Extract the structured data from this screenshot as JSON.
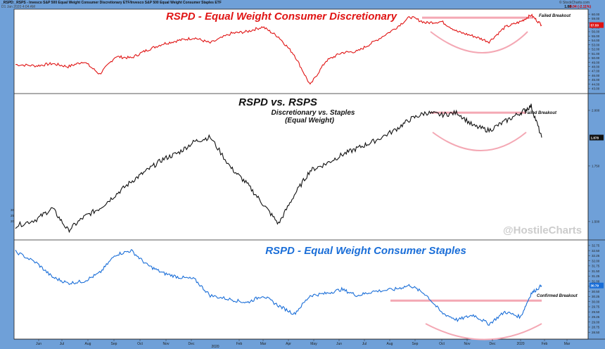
{
  "header": {
    "title": "_RSPD:_RSPS - Invesco S&P 500 Equal Weight Consumer Discretionary ETF/Invesco S&P 500 Equal Weight Consumer Staples ETF",
    "subtitle": "D1 Jan 2020 4:04 AM",
    "brand": "© StockCharts.com",
    "last": "1.88",
    "change": "-0.04 (-2.11%)"
  },
  "colors": {
    "red": "#e01414",
    "black": "#111111",
    "blue": "#1a6ed8",
    "pink": "#f4a8b4",
    "bg": "#6fa0d8"
  },
  "watermark": "@HostileCharts",
  "xaxis": {
    "months": [
      "Jun",
      "Jul",
      "Aug",
      "Sep",
      "Oct",
      "Nov",
      "Dec",
      "Feb",
      "Mar",
      "Apr",
      "May",
      "Jun",
      "Jul",
      "Aug",
      "Sep",
      "Oct",
      "Nov",
      "Dec",
      "2020",
      "Feb",
      "Mar"
    ],
    "year_label": "2020"
  },
  "chart_data": [
    {
      "type": "line",
      "title": "RSPD - Equal Weight Consumer Discretionary",
      "annotation": "Failed Breakout",
      "last_label": "57.50",
      "yticks": [
        "60.00",
        "59.00",
        "58.00",
        "57.00",
        "56.00",
        "55.00",
        "54.00",
        "53.00",
        "52.00",
        "51.00",
        "50.00",
        "49.00",
        "48.00",
        "47.00",
        "46.00",
        "45.00",
        "44.00",
        "43.00"
      ],
      "ylim": [
        42.5,
        60.5
      ],
      "x": [
        0,
        0.04,
        0.07,
        0.1,
        0.13,
        0.16,
        0.19,
        0.22,
        0.25,
        0.28,
        0.31,
        0.34,
        0.37,
        0.41,
        0.44,
        0.47,
        0.5,
        0.53,
        0.56,
        0.59,
        0.62,
        0.65,
        0.68,
        0.72,
        0.75,
        0.78,
        0.81,
        0.84,
        0.87,
        0.9,
        0.93,
        0.96,
        0.98,
        1.0
      ],
      "y": [
        48.5,
        48.2,
        48.7,
        48.0,
        49.2,
        46.3,
        50.3,
        50.0,
        51.8,
        53.2,
        54.0,
        54.6,
        53.4,
        55.6,
        56.0,
        57.1,
        54.8,
        50.7,
        43.8,
        49.3,
        51.2,
        51.5,
        53.6,
        56.6,
        59.4,
        58.0,
        58.3,
        56.0,
        55.0,
        53.7,
        57.0,
        58.3,
        59.8,
        57.5
      ]
    },
    {
      "type": "line",
      "title": "RSPD vs. RSPS",
      "subtitle_lines": [
        "Discretionary vs. Staples",
        "(Equal Weight)"
      ],
      "annotation": "Failed Breakout",
      "last_label": "1.878",
      "yticks": [
        "2.000",
        "1.750",
        "1.500"
      ],
      "ylim": [
        1.43,
        2.06
      ],
      "left_ticks": [
        "30",
        "25",
        "20"
      ],
      "x": [
        0,
        0.04,
        0.07,
        0.1,
        0.13,
        0.16,
        0.19,
        0.22,
        0.25,
        0.28,
        0.31,
        0.34,
        0.37,
        0.41,
        0.44,
        0.47,
        0.5,
        0.53,
        0.56,
        0.59,
        0.62,
        0.65,
        0.68,
        0.72,
        0.75,
        0.78,
        0.81,
        0.84,
        0.87,
        0.9,
        0.93,
        0.96,
        0.98,
        1.0
      ],
      "y": [
        1.48,
        1.51,
        1.56,
        1.46,
        1.52,
        1.56,
        1.62,
        1.68,
        1.73,
        1.78,
        1.81,
        1.86,
        1.88,
        1.74,
        1.67,
        1.58,
        1.49,
        1.62,
        1.73,
        1.76,
        1.8,
        1.83,
        1.86,
        1.91,
        1.96,
        1.99,
        1.98,
        1.99,
        1.93,
        1.91,
        1.95,
        1.99,
        2.02,
        1.878
      ]
    },
    {
      "type": "line",
      "title": "RSPD - Equal Weight Consumer Staples",
      "annotation": "Confirmed Breakout",
      "last_label": "30.79",
      "yticks": [
        "32.75",
        "32.50",
        "32.25",
        "32.00",
        "31.75",
        "31.50",
        "31.25",
        "31.00",
        "30.75",
        "30.50",
        "30.25",
        "30.00",
        "29.75",
        "29.50",
        "29.25",
        "29.00",
        "28.75",
        "28.50"
      ],
      "ylim": [
        28.3,
        32.85
      ],
      "x": [
        0,
        0.04,
        0.07,
        0.1,
        0.13,
        0.16,
        0.19,
        0.22,
        0.25,
        0.28,
        0.31,
        0.34,
        0.37,
        0.41,
        0.44,
        0.47,
        0.5,
        0.53,
        0.56,
        0.59,
        0.62,
        0.65,
        0.68,
        0.72,
        0.75,
        0.78,
        0.81,
        0.84,
        0.87,
        0.9,
        0.93,
        0.96,
        0.98,
        1.0
      ],
      "y": [
        32.45,
        31.9,
        31.2,
        30.9,
        31.0,
        31.4,
        32.3,
        32.5,
        31.8,
        31.4,
        31.2,
        31.1,
        30.3,
        30.1,
        29.95,
        30.3,
        29.8,
        29.4,
        30.3,
        30.4,
        30.6,
        30.3,
        30.5,
        30.6,
        30.8,
        30.35,
        29.45,
        29.1,
        29.35,
        28.9,
        29.5,
        29.25,
        30.4,
        30.79
      ]
    }
  ]
}
